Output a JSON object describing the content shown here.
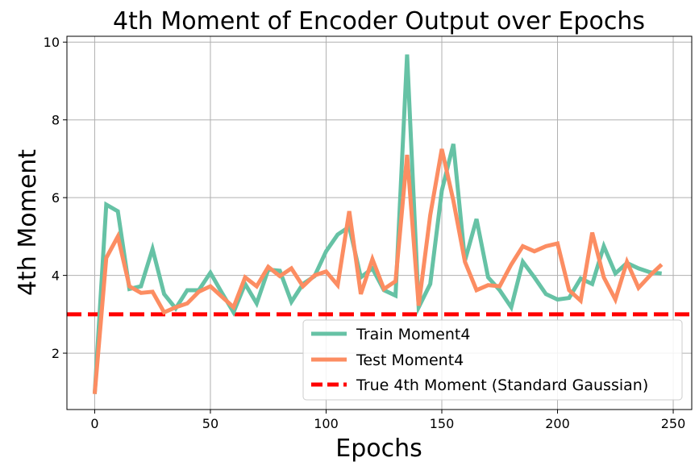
{
  "chart_data": {
    "type": "line",
    "title": "4th Moment of Encoder Output over Epochs",
    "xlabel": "Epochs",
    "ylabel": "4th Moment",
    "xlim": [
      -12,
      258
    ],
    "ylim": [
      0.55,
      10.15
    ],
    "xticks": [
      0,
      50,
      100,
      150,
      200,
      250
    ],
    "yticks": [
      2,
      4,
      6,
      8,
      10
    ],
    "grid": true,
    "legend_position": "lower-right",
    "x": [
      0,
      5,
      10,
      15,
      20,
      25,
      30,
      35,
      40,
      45,
      50,
      55,
      60,
      65,
      70,
      75,
      80,
      85,
      90,
      95,
      100,
      105,
      110,
      115,
      120,
      125,
      130,
      135,
      140,
      145,
      150,
      155,
      160,
      165,
      170,
      175,
      180,
      185,
      190,
      195,
      200,
      205,
      210,
      215,
      220,
      225,
      230,
      235,
      240,
      245
    ],
    "series": [
      {
        "name": "Train Moment4",
        "color": "#66c2a5",
        "style": "solid",
        "values": [
          0.95,
          5.82,
          5.65,
          3.65,
          3.72,
          4.68,
          3.52,
          3.15,
          3.62,
          3.62,
          4.07,
          3.55,
          3.05,
          3.78,
          3.28,
          4.15,
          4.12,
          3.32,
          3.78,
          3.98,
          4.62,
          5.05,
          5.25,
          3.95,
          4.18,
          3.62,
          3.48,
          9.68,
          3.18,
          3.78,
          6.18,
          7.38,
          4.38,
          5.45,
          3.95,
          3.62,
          3.18,
          4.35,
          3.95,
          3.52,
          3.38,
          3.42,
          3.92,
          3.78,
          4.75,
          4.05,
          4.32,
          4.18,
          4.08,
          4.05
        ]
      },
      {
        "name": "Test Moment4",
        "color": "#fc8d62",
        "style": "solid",
        "values": [
          0.95,
          4.45,
          5.0,
          3.72,
          3.55,
          3.58,
          3.05,
          3.18,
          3.28,
          3.58,
          3.72,
          3.45,
          3.18,
          3.95,
          3.72,
          4.22,
          3.98,
          4.18,
          3.72,
          4.0,
          4.1,
          3.75,
          5.65,
          3.52,
          4.42,
          3.65,
          3.85,
          7.1,
          3.22,
          5.55,
          7.25,
          5.92,
          4.35,
          3.62,
          3.75,
          3.72,
          4.28,
          4.75,
          4.62,
          4.75,
          4.82,
          3.62,
          3.35,
          5.1,
          3.95,
          3.38,
          4.35,
          3.68,
          4.0,
          4.28
        ]
      }
    ],
    "reference_line": {
      "name": "True 4th Moment (Standard Gaussian)",
      "value": 3.0,
      "color": "#ff0000",
      "style": "dashed"
    }
  }
}
